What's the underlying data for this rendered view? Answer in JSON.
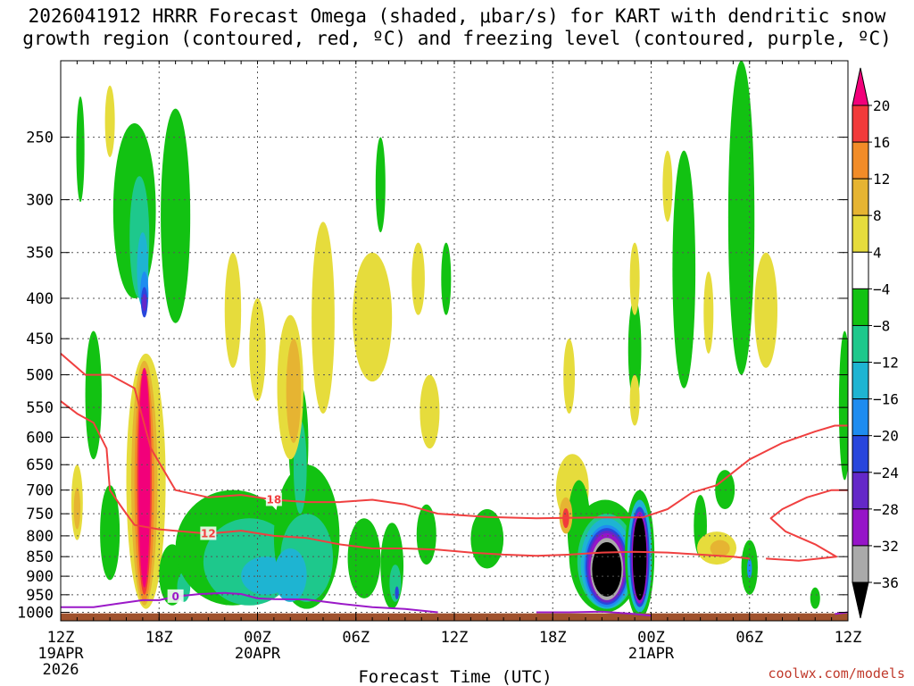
{
  "title": {
    "line1": "2026041912 HRRR Forecast Omega (shaded, μbar/s) for KART with dendritic snow",
    "line2": "growth region (contoured, red, ºC) and freezing level (contoured, purple, ºC)"
  },
  "credit": "coolwx.com/models",
  "chart_data": {
    "type": "heatmap",
    "title": "2026041912 HRRR Forecast Omega (shaded, μbar/s) for KART with dendritic snow growth region (contoured, red, ºC) and freezing level (contoured, purple, ºC)",
    "xlabel": "Forecast Time (UTC)",
    "ylabel": "",
    "x_range_hours": [
      0,
      48
    ],
    "y_range_mb": [
      200,
      1025
    ],
    "y_scale": "log-pressure (inverted)",
    "x_ticks": [
      {
        "hour": 0,
        "label": "12Z",
        "date": "19APR",
        "year": "2026"
      },
      {
        "hour": 6,
        "label": "18Z"
      },
      {
        "hour": 12,
        "label": "00Z",
        "date": "20APR"
      },
      {
        "hour": 18,
        "label": "06Z"
      },
      {
        "hour": 24,
        "label": "12Z"
      },
      {
        "hour": 30,
        "label": "18Z"
      },
      {
        "hour": 36,
        "label": "00Z",
        "date": "21APR"
      },
      {
        "hour": 42,
        "label": "06Z"
      },
      {
        "hour": 48,
        "label": "12Z"
      }
    ],
    "y_ticks": [
      250,
      300,
      350,
      400,
      450,
      500,
      550,
      600,
      650,
      700,
      750,
      800,
      850,
      900,
      950,
      1000
    ],
    "colorbar": {
      "levels": [
        20,
        16,
        12,
        8,
        4,
        -4,
        -8,
        -12,
        -16,
        -20,
        -24,
        -28,
        -32,
        -36
      ],
      "labels": [
        "20",
        "16",
        "12",
        "8",
        "4",
        "−4",
        "−8",
        "−12",
        "−16",
        "−20",
        "−24",
        "−28",
        "−32",
        "−36"
      ],
      "colors": [
        "#f2007a",
        "#f23a3a",
        "#f28c28",
        "#e6b432",
        "#e6dc3c",
        "#ffffff",
        "#12c212",
        "#1ec88c",
        "#1eb4d2",
        "#1e8cf0",
        "#2846dc",
        "#6428c8",
        "#9614c8",
        "#aaaaaa",
        "#000000"
      ]
    },
    "shading": [
      {
        "value": -6,
        "x": 1.2,
        "p": 262,
        "rx": 0.25,
        "rp": 40
      },
      {
        "value": -6,
        "x": 2.0,
        "p": 540,
        "rx": 0.5,
        "rp": 100
      },
      {
        "value": -6,
        "x": 4.5,
        "p": 320,
        "rx": 1.3,
        "rp": 80
      },
      {
        "value": -10,
        "x": 4.8,
        "p": 340,
        "rx": 0.6,
        "rp": 60
      },
      {
        "value": -14,
        "x": 5.0,
        "p": 370,
        "rx": 0.35,
        "rp": 40
      },
      {
        "value": -18,
        "x": 5.1,
        "p": 395,
        "rx": 0.25,
        "rp": 25
      },
      {
        "value": -22,
        "x": 5.1,
        "p": 405,
        "rx": 0.2,
        "rp": 18
      },
      {
        "value": -26,
        "x": 5.1,
        "p": 405,
        "rx": 0.14,
        "rp": 10
      },
      {
        "value": -6,
        "x": 7.0,
        "p": 330,
        "rx": 0.9,
        "rp": 100
      },
      {
        "value": 6,
        "x": 5.2,
        "p": 730,
        "rx": 1.2,
        "rp": 260
      },
      {
        "value": 10,
        "x": 5.1,
        "p": 730,
        "rx": 0.8,
        "rp": 250
      },
      {
        "value": 14,
        "x": 5.1,
        "p": 730,
        "rx": 0.6,
        "rp": 240
      },
      {
        "value": 18,
        "x": 5.1,
        "p": 720,
        "rx": 0.45,
        "rp": 230
      },
      {
        "value": 22,
        "x": 5.1,
        "p": 710,
        "rx": 0.35,
        "rp": 220
      },
      {
        "value": 6,
        "x": 1.0,
        "p": 730,
        "rx": 0.35,
        "rp": 80
      },
      {
        "value": 10,
        "x": 1.0,
        "p": 740,
        "rx": 0.2,
        "rp": 45
      },
      {
        "value": -6,
        "x": 3.0,
        "p": 800,
        "rx": 0.6,
        "rp": 110
      },
      {
        "value": -6,
        "x": 6.8,
        "p": 900,
        "rx": 0.8,
        "rp": 80
      },
      {
        "value": -10,
        "x": 7.5,
        "p": 930,
        "rx": 0.4,
        "rp": 40
      },
      {
        "value": -6,
        "x": 10.5,
        "p": 840,
        "rx": 3.5,
        "rp": 140
      },
      {
        "value": -10,
        "x": 11.5,
        "p": 870,
        "rx": 2.8,
        "rp": 110
      },
      {
        "value": -14,
        "x": 12.5,
        "p": 900,
        "rx": 1.5,
        "rp": 50
      },
      {
        "value": -6,
        "x": 15.0,
        "p": 820,
        "rx": 2.0,
        "rp": 170
      },
      {
        "value": -10,
        "x": 15.0,
        "p": 860,
        "rx": 1.6,
        "rp": 110
      },
      {
        "value": -14,
        "x": 14.0,
        "p": 900,
        "rx": 1.0,
        "rp": 70
      },
      {
        "value": -6,
        "x": 14.5,
        "p": 620,
        "rx": 0.6,
        "rp": 110
      },
      {
        "value": -10,
        "x": 14.6,
        "p": 660,
        "rx": 0.4,
        "rp": 90
      },
      {
        "value": -6,
        "x": 18.5,
        "p": 860,
        "rx": 1.0,
        "rp": 100
      },
      {
        "value": -6,
        "x": 20.2,
        "p": 880,
        "rx": 0.7,
        "rp": 110
      },
      {
        "value": -10,
        "x": 20.4,
        "p": 920,
        "rx": 0.35,
        "rp": 50
      },
      {
        "value": -22,
        "x": 20.5,
        "p": 945,
        "rx": 0.12,
        "rp": 18
      },
      {
        "value": -6,
        "x": 22.3,
        "p": 800,
        "rx": 0.6,
        "rp": 70
      },
      {
        "value": -6,
        "x": 26.0,
        "p": 810,
        "rx": 1.0,
        "rp": 70
      },
      {
        "value": 6,
        "x": 3.0,
        "p": 240,
        "rx": 0.3,
        "rp": 25
      },
      {
        "value": 6,
        "x": 10.5,
        "p": 420,
        "rx": 0.5,
        "rp": 70
      },
      {
        "value": 6,
        "x": 12.0,
        "p": 470,
        "rx": 0.5,
        "rp": 70
      },
      {
        "value": 6,
        "x": 14.0,
        "p": 530,
        "rx": 0.8,
        "rp": 110
      },
      {
        "value": 10,
        "x": 14.2,
        "p": 530,
        "rx": 0.45,
        "rp": 80
      },
      {
        "value": 6,
        "x": 16.0,
        "p": 440,
        "rx": 0.7,
        "rp": 120
      },
      {
        "value": 6,
        "x": 19.0,
        "p": 430,
        "rx": 1.2,
        "rp": 80
      },
      {
        "value": 6,
        "x": 22.5,
        "p": 560,
        "rx": 0.6,
        "rp": 60
      },
      {
        "value": 6,
        "x": 21.8,
        "p": 380,
        "rx": 0.4,
        "rp": 40
      },
      {
        "value": -6,
        "x": 23.5,
        "p": 380,
        "rx": 0.3,
        "rp": 40
      },
      {
        "value": -6,
        "x": 19.5,
        "p": 290,
        "rx": 0.3,
        "rp": 40
      },
      {
        "value": 6,
        "x": 31.0,
        "p": 505,
        "rx": 0.35,
        "rp": 55
      },
      {
        "value": 6,
        "x": 31.2,
        "p": 700,
        "rx": 1.0,
        "rp": 70
      },
      {
        "value": -6,
        "x": 31.6,
        "p": 790,
        "rx": 0.7,
        "rp": 110
      },
      {
        "value": 10,
        "x": 30.8,
        "p": 755,
        "rx": 0.4,
        "rp": 40
      },
      {
        "value": 18,
        "x": 30.8,
        "p": 760,
        "rx": 0.2,
        "rp": 22
      },
      {
        "value": -6,
        "x": 33.2,
        "p": 860,
        "rx": 2.2,
        "rp": 140
      },
      {
        "value": -10,
        "x": 33.3,
        "p": 870,
        "rx": 1.8,
        "rp": 120
      },
      {
        "value": -14,
        "x": 33.3,
        "p": 875,
        "rx": 1.6,
        "rp": 115
      },
      {
        "value": -18,
        "x": 33.3,
        "p": 880,
        "rx": 1.4,
        "rp": 105
      },
      {
        "value": -22,
        "x": 33.3,
        "p": 880,
        "rx": 1.3,
        "rp": 98
      },
      {
        "value": -26,
        "x": 33.3,
        "p": 880,
        "rx": 1.2,
        "rp": 92
      },
      {
        "value": -30,
        "x": 33.3,
        "p": 880,
        "rx": 1.1,
        "rp": 86
      },
      {
        "value": -34,
        "x": 33.3,
        "p": 885,
        "rx": 1.0,
        "rp": 80
      },
      {
        "value": -38,
        "x": 33.3,
        "p": 885,
        "rx": 0.9,
        "rp": 70
      },
      {
        "value": -6,
        "x": 35.3,
        "p": 860,
        "rx": 0.9,
        "rp": 160
      },
      {
        "value": -14,
        "x": 35.3,
        "p": 860,
        "rx": 0.75,
        "rp": 140
      },
      {
        "value": -22,
        "x": 35.3,
        "p": 860,
        "rx": 0.6,
        "rp": 125
      },
      {
        "value": -30,
        "x": 35.3,
        "p": 860,
        "rx": 0.5,
        "rp": 115
      },
      {
        "value": -38,
        "x": 35.3,
        "p": 860,
        "rx": 0.42,
        "rp": 105
      },
      {
        "value": -6,
        "x": 35.0,
        "p": 470,
        "rx": 0.4,
        "rp": 70
      },
      {
        "value": 6,
        "x": 35.0,
        "p": 540,
        "rx": 0.3,
        "rp": 40
      },
      {
        "value": -6,
        "x": 38.0,
        "p": 390,
        "rx": 0.7,
        "rp": 130
      },
      {
        "value": 6,
        "x": 37.0,
        "p": 290,
        "rx": 0.3,
        "rp": 30
      },
      {
        "value": 6,
        "x": 35.0,
        "p": 380,
        "rx": 0.3,
        "rp": 40
      },
      {
        "value": -6,
        "x": 41.5,
        "p": 340,
        "rx": 0.8,
        "rp": 160
      },
      {
        "value": 6,
        "x": 43.0,
        "p": 420,
        "rx": 0.7,
        "rp": 70
      },
      {
        "value": 6,
        "x": 39.5,
        "p": 420,
        "rx": 0.3,
        "rp": 50
      },
      {
        "value": -6,
        "x": 39.0,
        "p": 780,
        "rx": 0.4,
        "rp": 70
      },
      {
        "value": 6,
        "x": 40.0,
        "p": 830,
        "rx": 1.2,
        "rp": 40
      },
      {
        "value": 10,
        "x": 40.2,
        "p": 830,
        "rx": 0.6,
        "rp": 20
      },
      {
        "value": -6,
        "x": 42.0,
        "p": 880,
        "rx": 0.5,
        "rp": 70
      },
      {
        "value": -18,
        "x": 42.0,
        "p": 880,
        "rx": 0.15,
        "rp": 25
      },
      {
        "value": -6,
        "x": 40.5,
        "p": 700,
        "rx": 0.6,
        "rp": 40
      },
      {
        "value": -6,
        "x": 47.8,
        "p": 560,
        "rx": 0.35,
        "rp": 120
      },
      {
        "value": -6,
        "x": 46.0,
        "p": 960,
        "rx": 0.3,
        "rp": 30
      }
    ],
    "contours": [
      {
        "name": "-18",
        "color": "#f04040",
        "label": "18",
        "points": [
          [
            0,
            470
          ],
          [
            1.5,
            500
          ],
          [
            3,
            500
          ],
          [
            4.5,
            520
          ],
          [
            5.5,
            620
          ],
          [
            7,
            700
          ],
          [
            9,
            715
          ],
          [
            11,
            710
          ],
          [
            13,
            720
          ],
          [
            15,
            725
          ],
          [
            17,
            725
          ],
          [
            19,
            720
          ],
          [
            21,
            730
          ],
          [
            23,
            750
          ],
          [
            26,
            757
          ],
          [
            29,
            760
          ],
          [
            33,
            758
          ],
          [
            35.5,
            758
          ],
          [
            37,
            740
          ],
          [
            38.5,
            705
          ],
          [
            40,
            690
          ],
          [
            42,
            640
          ],
          [
            44,
            610
          ],
          [
            46,
            590
          ],
          [
            47.2,
            580
          ],
          [
            48,
            580
          ]
        ]
      },
      {
        "name": "-18b",
        "color": "#f04040",
        "label": "",
        "points": [
          [
            48,
            700
          ],
          [
            47,
            700
          ],
          [
            45.5,
            715
          ],
          [
            44,
            740
          ],
          [
            43.3,
            760
          ],
          [
            44.2,
            790
          ],
          [
            46,
            820
          ],
          [
            47.3,
            850
          ],
          [
            45,
            860
          ],
          [
            43,
            855
          ]
        ]
      },
      {
        "name": "-12",
        "color": "#f04040",
        "label": "12",
        "points": [
          [
            0,
            540
          ],
          [
            1,
            560
          ],
          [
            2,
            575
          ],
          [
            2.8,
            620
          ],
          [
            3,
            700
          ],
          [
            3.8,
            740
          ],
          [
            4.5,
            775
          ],
          [
            6,
            785
          ],
          [
            9,
            795
          ],
          [
            11,
            788
          ],
          [
            13,
            800
          ],
          [
            15,
            805
          ],
          [
            17,
            820
          ],
          [
            19,
            830
          ],
          [
            21,
            830
          ],
          [
            23,
            833
          ],
          [
            25,
            840
          ],
          [
            27,
            845
          ],
          [
            29,
            848
          ],
          [
            31,
            845
          ],
          [
            33,
            840
          ],
          [
            35,
            838
          ],
          [
            37,
            840
          ],
          [
            39,
            845
          ],
          [
            41,
            850
          ],
          [
            42,
            855
          ]
        ]
      },
      {
        "name": "0",
        "color": "#9b19c8",
        "label": "0",
        "points": [
          [
            0,
            985
          ],
          [
            2,
            985
          ],
          [
            3.5,
            975
          ],
          [
            5,
            965
          ],
          [
            6,
            965
          ],
          [
            7,
            955
          ],
          [
            8.5,
            948
          ],
          [
            10,
            945
          ],
          [
            11,
            948
          ],
          [
            12,
            960
          ],
          [
            13,
            962
          ],
          [
            15,
            963
          ],
          [
            17,
            975
          ],
          [
            19,
            985
          ],
          [
            21,
            990
          ],
          [
            23,
            1000
          ]
        ]
      },
      {
        "name": "0b",
        "color": "#9b19c8",
        "label": "",
        "points": [
          [
            29,
            1000
          ],
          [
            31,
            1000
          ],
          [
            33,
            998
          ],
          [
            35,
            1005
          ],
          [
            36,
            1010
          ]
        ]
      },
      {
        "name": "0c",
        "color": "#9b19c8",
        "label": "",
        "points": [
          [
            47.2,
            1005
          ],
          [
            48,
            1000
          ]
        ]
      }
    ],
    "terrain": {
      "color": "#a0522d",
      "surface_pressure_mb": 1003
    }
  }
}
